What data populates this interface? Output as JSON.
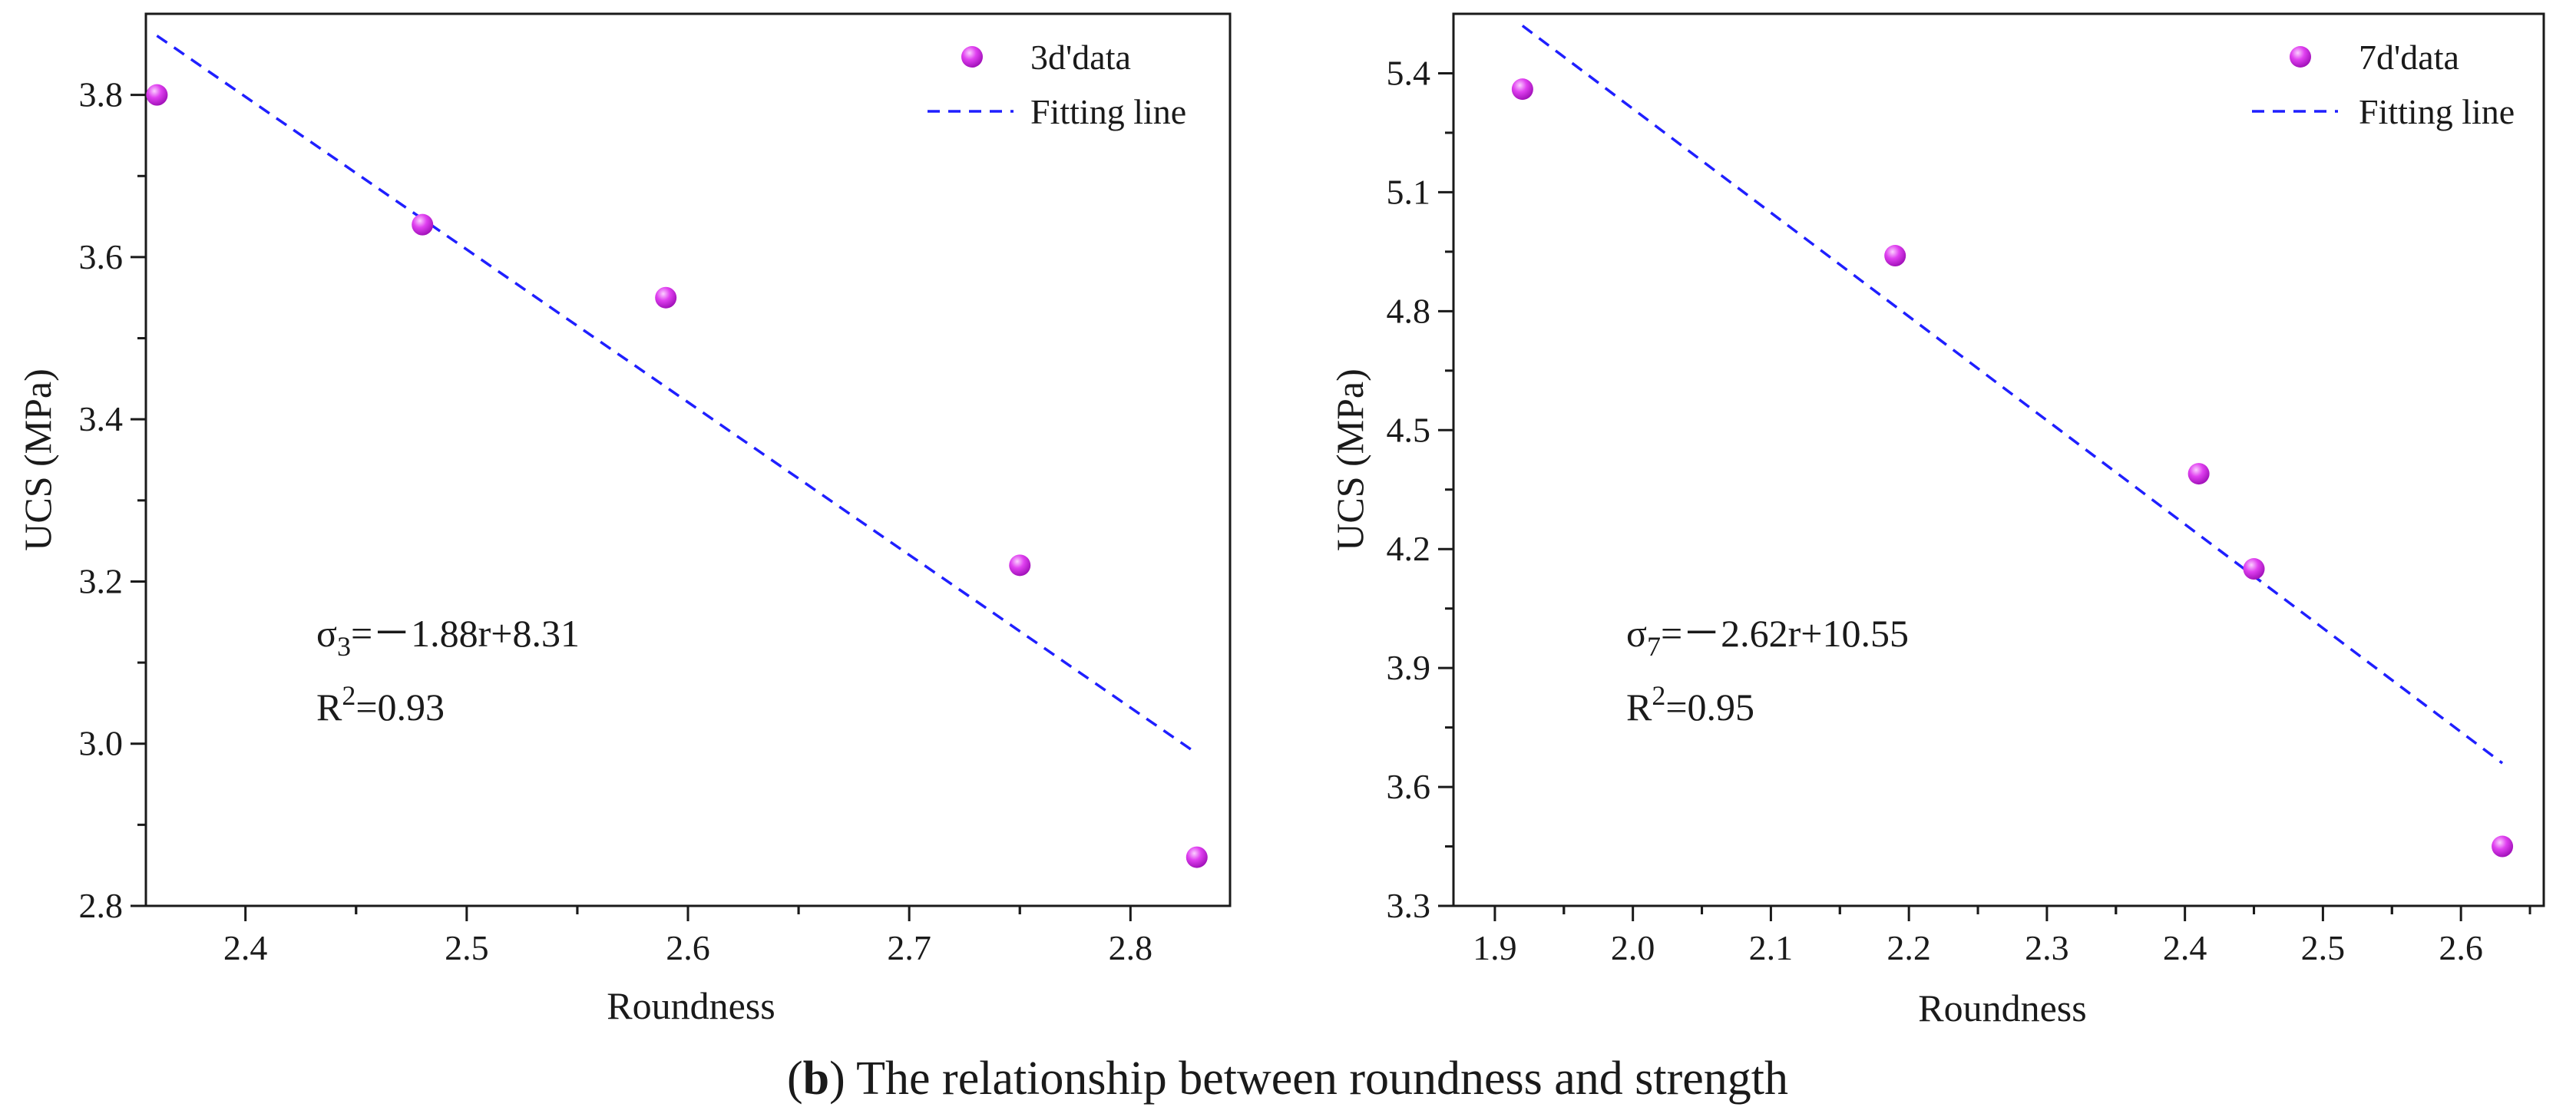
{
  "chart_data": [
    {
      "type": "scatter",
      "ylabel": "UCS (MPa)",
      "xlabel": "Roundness",
      "xlim": [
        2.355,
        2.845
      ],
      "ylim": [
        2.8,
        3.9
      ],
      "xticks": [
        2.4,
        2.5,
        2.6,
        2.7,
        2.8
      ],
      "yticks": [
        2.8,
        3.0,
        3.2,
        3.4,
        3.6,
        3.8
      ],
      "xtick_labels": [
        "2.4",
        "2.5",
        "2.6",
        "2.7",
        "2.8"
      ],
      "ytick_labels": [
        "2.8",
        "3.0",
        "3.2",
        "3.4",
        "3.6",
        "3.8"
      ],
      "series": [
        {
          "name": "3d'data",
          "kind": "points",
          "x": [
            2.36,
            2.48,
            2.59,
            2.75,
            2.83
          ],
          "y": [
            3.8,
            3.64,
            3.55,
            3.22,
            2.86
          ]
        },
        {
          "name": "Fitting line",
          "kind": "line",
          "x": [
            2.36,
            2.83
          ],
          "y": [
            3.873,
            2.988
          ]
        }
      ],
      "equation": {
        "sigma": "σ",
        "sub": "3",
        "rhs": "=－1.88r+8.31"
      },
      "r2": {
        "r": "R",
        "sup": "2",
        "rhs": "=0.93"
      }
    },
    {
      "type": "scatter",
      "ylabel": "UCS (MPa)",
      "xlabel": "Roundness",
      "xlim": [
        1.87,
        2.66
      ],
      "ylim": [
        3.3,
        5.55
      ],
      "xticks": [
        1.9,
        2.0,
        2.1,
        2.2,
        2.3,
        2.4,
        2.5,
        2.6
      ],
      "yticks": [
        3.3,
        3.6,
        3.9,
        4.2,
        4.5,
        4.8,
        5.1,
        5.4
      ],
      "xtick_labels": [
        "1.9",
        "2.0",
        "2.1",
        "2.2",
        "2.3",
        "2.4",
        "2.5",
        "2.6"
      ],
      "ytick_labels": [
        "3.3",
        "3.6",
        "3.9",
        "4.2",
        "4.5",
        "4.8",
        "5.1",
        "5.4"
      ],
      "series": [
        {
          "name": "7d'data",
          "kind": "points",
          "x": [
            1.92,
            2.19,
            2.41,
            2.45,
            2.63
          ],
          "y": [
            5.36,
            4.94,
            4.39,
            4.15,
            3.45
          ]
        },
        {
          "name": "Fitting line",
          "kind": "line",
          "x": [
            1.92,
            2.63
          ],
          "y": [
            5.52,
            3.66
          ]
        }
      ],
      "equation": {
        "sigma": "σ",
        "sub": "7",
        "rhs": "=－2.62r+10.55"
      },
      "r2": {
        "r": "R",
        "sup": "2",
        "rhs": "=0.95"
      }
    }
  ],
  "caption": {
    "bold": "b",
    "text": " The relationship between roundness and strength"
  },
  "colors": {
    "marker": "#e040f0",
    "marker_highlight": "#fbd0ff",
    "fit_line": "#1f1fff"
  }
}
